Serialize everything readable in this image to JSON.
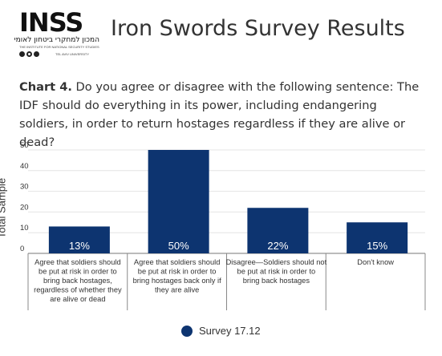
{
  "header": {
    "logo_text": "INSS",
    "logo_hebrew": "המכון למחקרי ביטחון לאומי",
    "logo_english": "THE INSTITUTE FOR NATIONAL SECURITY STUDIES",
    "logo_tau": "TEL AVIV UNIVERSITY",
    "title": "Iron Swords Survey Results"
  },
  "chart_data": {
    "type": "bar",
    "title_prefix": "Chart 4.",
    "title": "Do you agree or disagree with the following sentence: The IDF should do everything in its power, including endangering soldiers, in order to return hostages regardless if they are alive or dead?",
    "ylabel": "Total Sample",
    "xlabel": "",
    "ylim": [
      0,
      50
    ],
    "yticks": [
      0,
      10,
      20,
      30,
      40,
      50
    ],
    "categories": [
      "Agree that soldiers should be put at risk in order to bring back hostages, regardless of whether they are alive or dead",
      "Agree that soldiers should be put at risk in order to bring hostages back only if they are alive",
      "Disagree—Soldiers should not be put at risk in order to bring back hostages",
      "Don't know"
    ],
    "series": [
      {
        "name": "Survey 17.12",
        "values": [
          13,
          50,
          22,
          15
        ],
        "labels": [
          "13%",
          "50%",
          "22%",
          "15%"
        ],
        "color": "#0d3470"
      }
    ],
    "grid": true,
    "legend_position": "bottom-center"
  }
}
